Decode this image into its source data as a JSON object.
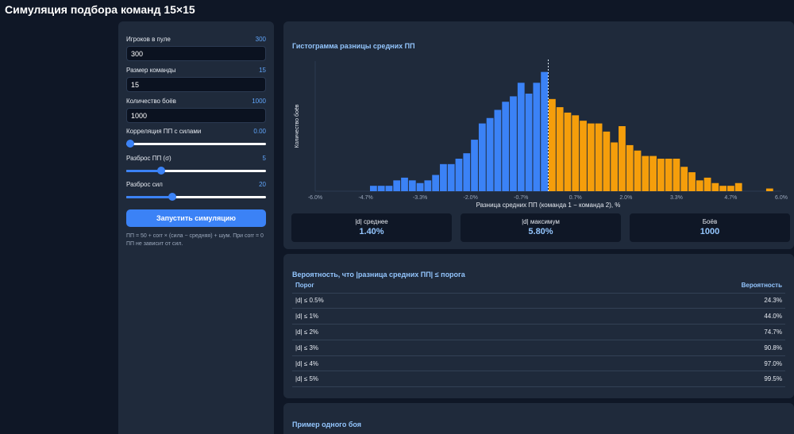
{
  "app": {
    "title": "Симуляция подбора команд 15×15"
  },
  "settings": {
    "pool": {
      "label": "Игроков в пуле",
      "value_display": "300",
      "input_value": "300"
    },
    "team_size": {
      "label": "Размер команды",
      "value_display": "15",
      "input_value": "15"
    },
    "battles": {
      "label": "Количество боёв",
      "value_display": "1000",
      "input_value": "1000"
    },
    "correlation": {
      "label": "Корреляция ПП с силами",
      "value_display": "0.00",
      "level": 0.0
    },
    "pp_spread": {
      "label": "Разброс ПП (σ)",
      "value_display": "5",
      "level": 0.25
    },
    "power_spread": {
      "label": "Разброс сил",
      "value_display": "20",
      "level": 0.33
    },
    "run_label": "Запустить симуляцию",
    "hint": "ПП = 50 + corr × (сила − средняя) + шум. При corr = 0 ПП не зависит от сил."
  },
  "histogram": {
    "title": "Гистограмма разницы средних ПП",
    "colors": {
      "negative": "#3b82f6",
      "positive": "#f59e0b"
    }
  },
  "chart_data": {
    "type": "bar",
    "title": "Гистограмма разницы средних ПП",
    "xlabel": "Разница средних ПП (команда 1 − команда 2), %",
    "ylabel": "Количество боёв",
    "xlim": [
      -6.0,
      6.0
    ],
    "ylim": [
      0,
      48
    ],
    "x_ticks": [
      "-6.0%",
      "-4.7%",
      "-3.3%",
      "-2.0%",
      "-0.7%",
      "0.7%",
      "2.0%",
      "3.3%",
      "4.7%",
      "6.0%"
    ],
    "bin_centers": [
      -4.5,
      -4.3,
      -4.1,
      -3.9,
      -3.7,
      -3.5,
      -3.3,
      -3.1,
      -2.9,
      -2.7,
      -2.5,
      -2.3,
      -2.1,
      -1.9,
      -1.7,
      -1.5,
      -1.3,
      -1.1,
      -0.9,
      -0.7,
      -0.5,
      -0.3,
      -0.1,
      0.1,
      0.3,
      0.5,
      0.7,
      0.9,
      1.1,
      1.3,
      1.5,
      1.7,
      1.9,
      2.1,
      2.3,
      2.5,
      2.7,
      2.9,
      3.1,
      3.3,
      3.5,
      3.7,
      3.9,
      4.1,
      4.3,
      4.5,
      4.7,
      4.9,
      5.1,
      5.3,
      5.5,
      5.7
    ],
    "counts": [
      2,
      2,
      2,
      4,
      5,
      4,
      3,
      4,
      6,
      10,
      10,
      12,
      14,
      19,
      25,
      27,
      30,
      33,
      35,
      40,
      36,
      40,
      44,
      34,
      31,
      29,
      28,
      26,
      25,
      25,
      22,
      18,
      24,
      17,
      15,
      13,
      13,
      12,
      12,
      12,
      9,
      7,
      4,
      5,
      3,
      2,
      2,
      3,
      0,
      0,
      0,
      1
    ],
    "colors_by_sign": {
      "negative": "#3b82f6",
      "positive": "#f59e0b"
    }
  },
  "stats": [
    {
      "label": "|d| среднее",
      "value": "1.40%"
    },
    {
      "label": "|d| максимум",
      "value": "5.80%"
    },
    {
      "label": "Боёв",
      "value": "1000"
    }
  ],
  "probability": {
    "title": "Вероятность, что |разница средних ПП| ≤ порога",
    "headers": {
      "threshold": "Порог",
      "probability": "Вероятность"
    },
    "rows": [
      {
        "threshold": "|d| ≤ 0.5%",
        "probability": "24.3%"
      },
      {
        "threshold": "|d| ≤ 1%",
        "probability": "44.0%"
      },
      {
        "threshold": "|d| ≤ 2%",
        "probability": "74.7%"
      },
      {
        "threshold": "|d| ≤ 3%",
        "probability": "90.8%"
      },
      {
        "threshold": "|d| ≤ 4%",
        "probability": "97.0%"
      },
      {
        "threshold": "|d| ≤ 5%",
        "probability": "99.5%"
      }
    ]
  },
  "example": {
    "title": "Пример одного боя"
  }
}
